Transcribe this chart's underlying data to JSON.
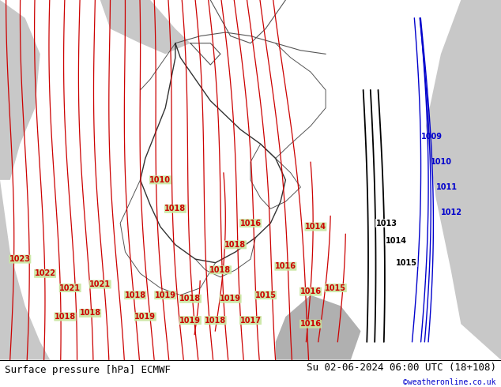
{
  "title_left": "Surface pressure [hPa] ECMWF",
  "title_right": "Su 02-06-2024 06:00 UTC (18+108)",
  "watermark": "©weatheronline.co.uk",
  "background_color": "#c8e6a0",
  "gray_color": "#c8c8c8",
  "dark_gray_color": "#b0b0b0",
  "border_color": "#707070",
  "isobar_color_red": "#cc0000",
  "isobar_color_blue": "#0000cc",
  "isobar_color_black": "#000000",
  "label_fontsize": 7,
  "title_fontsize": 9,
  "watermark_color": "#0000cc",
  "fig_width": 6.34,
  "fig_height": 4.9,
  "dpi": 100
}
